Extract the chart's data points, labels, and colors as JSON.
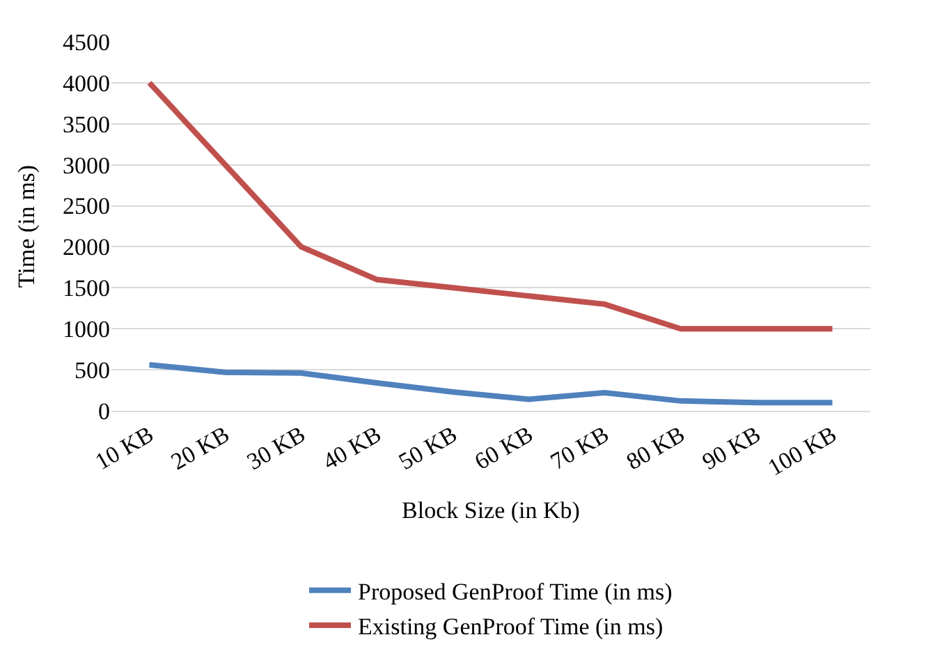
{
  "chart_data": {
    "type": "line",
    "xlabel": "Block Size (in Kb)",
    "ylabel": "Time (in ms)",
    "categories": [
      "10 KB",
      "20 KB",
      "30 KB",
      "40 KB",
      "50 KB",
      "60 KB",
      "70 KB",
      "80 KB",
      "90 KB",
      "100 KB"
    ],
    "series": [
      {
        "name": "Proposed GenProof Time (in ms)",
        "color": "#4f81bd",
        "values": [
          560,
          470,
          460,
          340,
          230,
          140,
          220,
          120,
          100,
          100
        ]
      },
      {
        "name": "Existing GenProof Time (in ms)",
        "color": "#c0504d",
        "values": [
          4000,
          3000,
          2000,
          1600,
          1500,
          1400,
          1300,
          1000,
          1000,
          1000
        ]
      }
    ],
    "ylim": [
      0,
      4500
    ],
    "yticks": [
      0,
      500,
      1000,
      1500,
      2000,
      2500,
      3000,
      3500,
      4000,
      4500
    ],
    "grid": "y",
    "legend": "bottom",
    "marker": "none",
    "line_style": "solid"
  }
}
